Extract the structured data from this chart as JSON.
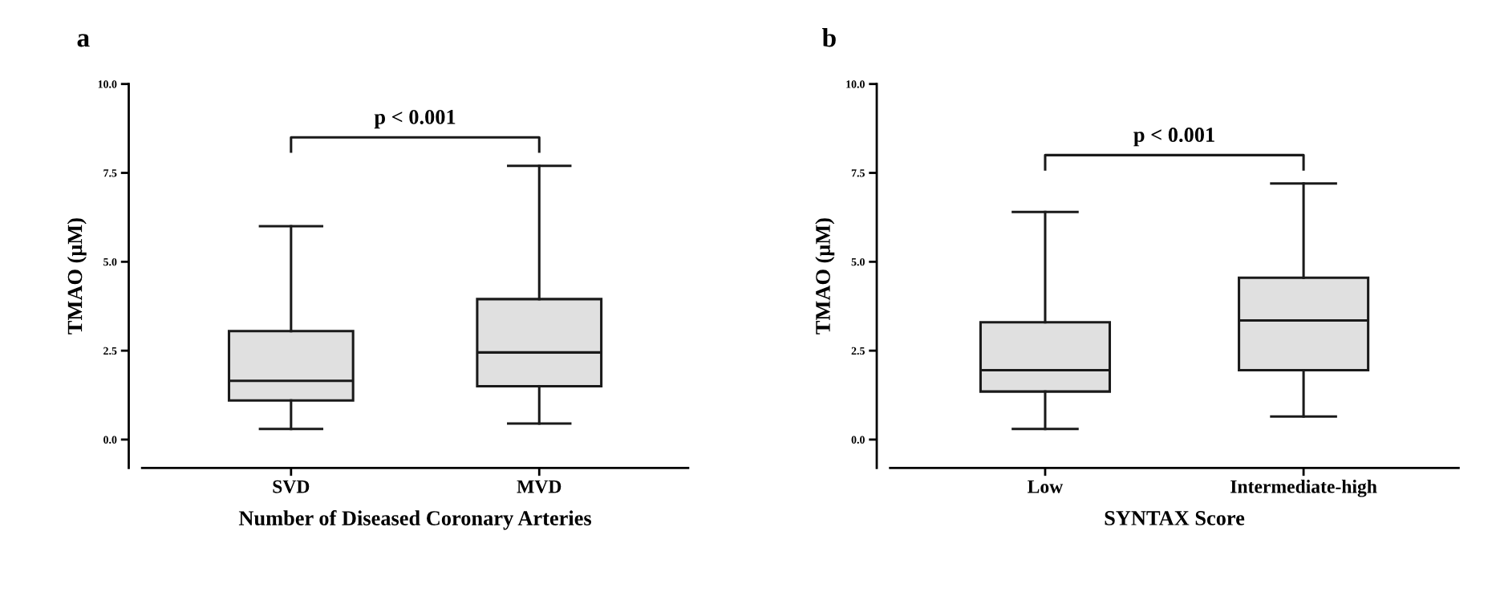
{
  "chart_data": [
    {
      "type": "box",
      "title": "a",
      "xlabel": "Number of Diseased Coronary Arteries",
      "ylabel": "TMAO (μM)",
      "categories": [
        "SVD",
        "MVD"
      ],
      "boxes": [
        {
          "low": 0.3,
          "q1": 1.1,
          "median": 1.65,
          "q3": 3.05,
          "high": 6.0
        },
        {
          "low": 0.45,
          "q1": 1.5,
          "median": 2.45,
          "q3": 3.95,
          "high": 7.7
        }
      ],
      "color": "#e0e0e0",
      "ylim": [
        -0.8,
        10
      ],
      "yticks": [
        {
          "value": 0,
          "label": "0.0"
        },
        {
          "value": 2.5,
          "label": "2.5"
        },
        {
          "value": 5,
          "label": "5.0"
        },
        {
          "value": 7.5,
          "label": "7.5"
        },
        {
          "value": 10,
          "label": "10.0"
        }
      ],
      "annotations": [
        "p < 0.001"
      ],
      "grid": false,
      "legend": false
    },
    {
      "type": "box",
      "title": "b",
      "xlabel": "SYNTAX Score",
      "ylabel": "TMAO (μM)",
      "categories": [
        "Low",
        "Intermediate-high"
      ],
      "boxes": [
        {
          "low": 0.3,
          "q1": 1.35,
          "median": 1.95,
          "q3": 3.3,
          "high": 6.4
        },
        {
          "low": 0.65,
          "q1": 1.95,
          "median": 3.35,
          "q3": 4.55,
          "high": 7.2
        }
      ],
      "color": "#e0e0e0",
      "ylim": [
        -0.8,
        10
      ],
      "yticks": [
        {
          "value": 0,
          "label": "0.0"
        },
        {
          "value": 2.5,
          "label": "2.5"
        },
        {
          "value": 5,
          "label": "5.0"
        },
        {
          "value": 7.5,
          "label": "7.5"
        },
        {
          "value": 10,
          "label": "10.0"
        }
      ],
      "annotations": [
        "p < 0.001"
      ],
      "grid": false,
      "legend": false
    }
  ]
}
